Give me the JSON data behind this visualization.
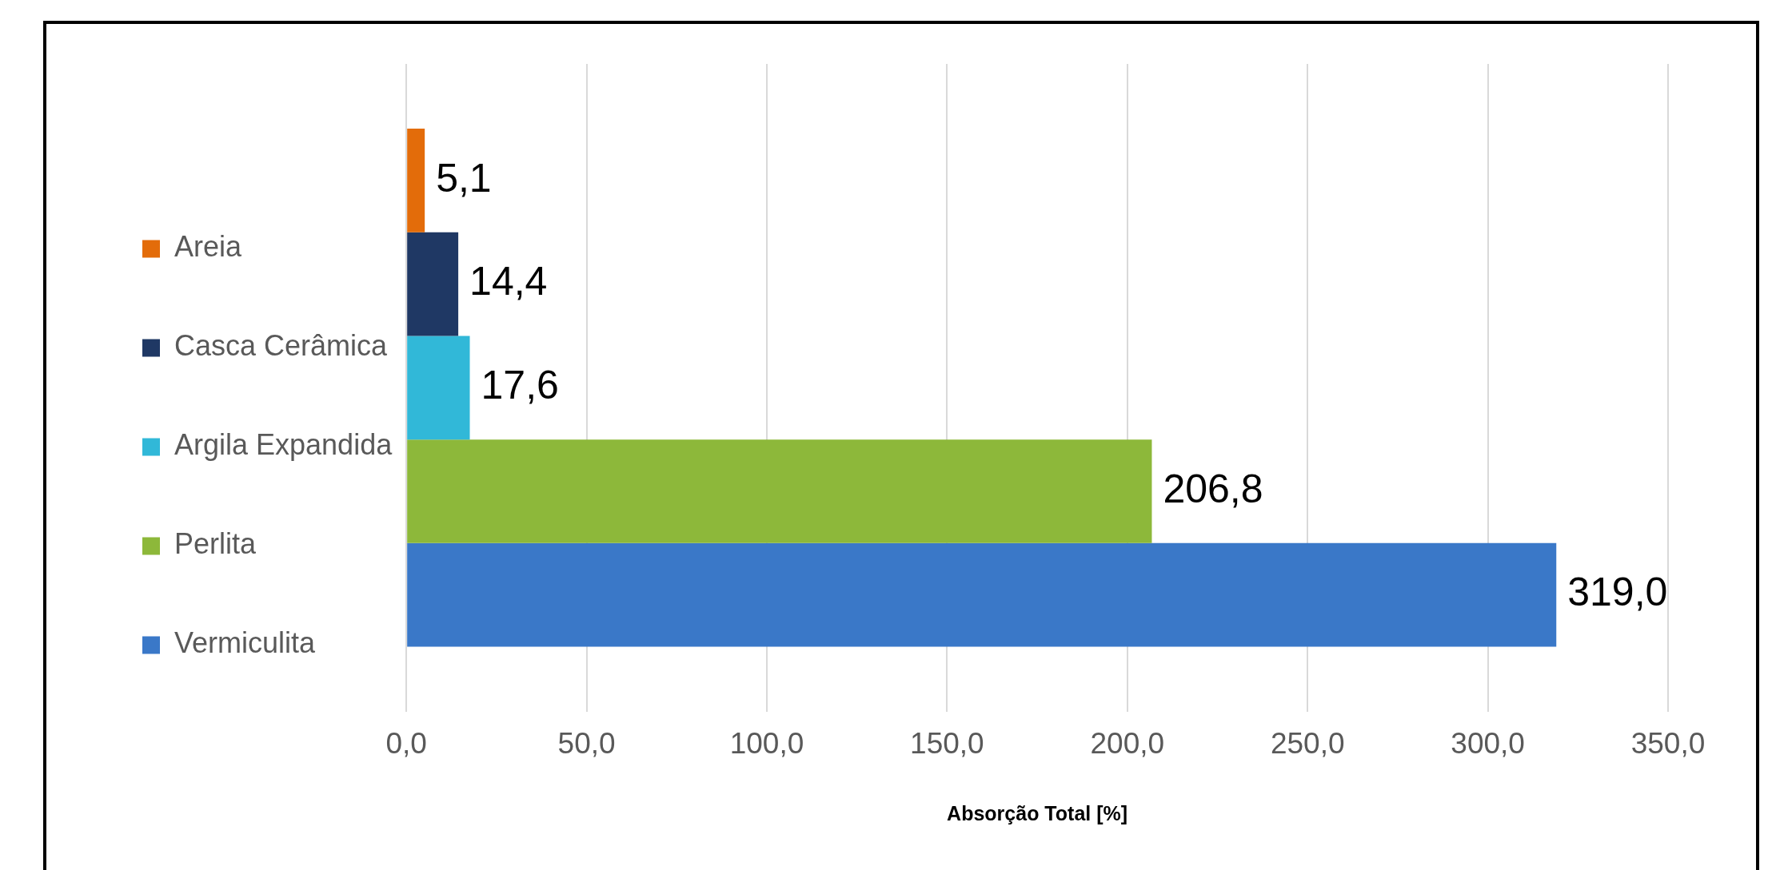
{
  "chart_data": {
    "type": "bar",
    "orientation": "horizontal",
    "categories": [
      null
    ],
    "xlabel": "Absorção Total [%]",
    "series": [
      {
        "name": "Areia",
        "color": "#e36c0a",
        "values": [
          5.1
        ],
        "value_labels": [
          "5,1"
        ]
      },
      {
        "name": "Casca Cerâmica",
        "color": "#1f3864",
        "values": [
          14.4
        ],
        "value_labels": [
          "14,4"
        ]
      },
      {
        "name": "Argila Expandida",
        "color": "#31b8d8",
        "values": [
          17.6
        ],
        "value_labels": [
          "17,6"
        ]
      },
      {
        "name": "Perlita",
        "color": "#8db83a",
        "values": [
          206.8
        ],
        "value_labels": [
          "206,8"
        ]
      },
      {
        "name": "Vermiculita",
        "color": "#3a78c8",
        "values": [
          319.0
        ],
        "value_labels": [
          "319,0"
        ]
      }
    ],
    "xlim": [
      0,
      350
    ],
    "xticks": [
      {
        "value": 0,
        "label": "0,0"
      },
      {
        "value": 50,
        "label": "50,0"
      },
      {
        "value": 100,
        "label": "100,0"
      },
      {
        "value": 150,
        "label": "150,0"
      },
      {
        "value": 200,
        "label": "200,0"
      },
      {
        "value": 250,
        "label": "250,0"
      },
      {
        "value": 300,
        "label": "300,0"
      },
      {
        "value": 350,
        "label": "350,0"
      }
    ],
    "grid": "x",
    "legend": "left",
    "tick_labels": "x"
  }
}
